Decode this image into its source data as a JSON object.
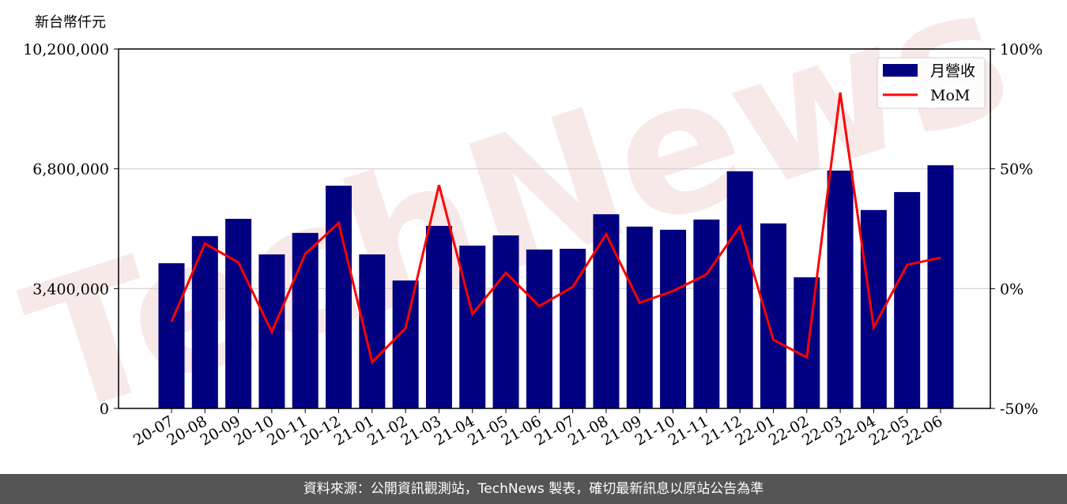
{
  "watermark": "TechNews",
  "footer": "資料來源：公開資訊觀測站，TechNews 製表，確切最新訊息以原站公告為準",
  "chart_data": {
    "type": "bar+line",
    "left_unit_label": "新台幣仟元",
    "categories": [
      "20-07",
      "20-08",
      "20-09",
      "20-10",
      "20-11",
      "20-12",
      "21-01",
      "21-02",
      "21-03",
      "21-04",
      "21-05",
      "21-06",
      "21-07",
      "21-08",
      "21-09",
      "21-10",
      "21-11",
      "21-12",
      "22-01",
      "22-02",
      "22-03",
      "22-04",
      "22-05",
      "22-06"
    ],
    "series": [
      {
        "name": "月營收",
        "type": "bar",
        "axis": "left",
        "color": "#000080",
        "values": [
          4120000,
          4890000,
          5380000,
          4370000,
          4980000,
          6320000,
          4370000,
          3630000,
          5180000,
          4620000,
          4910000,
          4510000,
          4530000,
          5510000,
          5160000,
          5070000,
          5360000,
          6730000,
          5250000,
          3720000,
          6750000,
          5630000,
          6140000,
          6900000
        ]
      },
      {
        "name": "MoM",
        "type": "line",
        "axis": "right",
        "unit": "%",
        "color": "#ff0000",
        "values": [
          -13.8,
          18.8,
          10.9,
          -18.1,
          14.5,
          27.4,
          -30.7,
          -16.5,
          43.2,
          -10.6,
          6.6,
          -7.3,
          0.7,
          22.7,
          -5.9,
          -1.0,
          5.9,
          26.0,
          -21.4,
          -28.7,
          81.8,
          -16.2,
          9.9,
          12.9
        ]
      }
    ],
    "left_axis": {
      "range": [
        0,
        10200000
      ],
      "ticks": [
        "0",
        "3,400,000",
        "6,800,000",
        "10,200,000"
      ]
    },
    "right_axis": {
      "range": [
        -50,
        100
      ],
      "ticks": [
        "-50%",
        "0%",
        "50%",
        "100%"
      ]
    },
    "grid": "horizontal",
    "legend": "top-right"
  }
}
